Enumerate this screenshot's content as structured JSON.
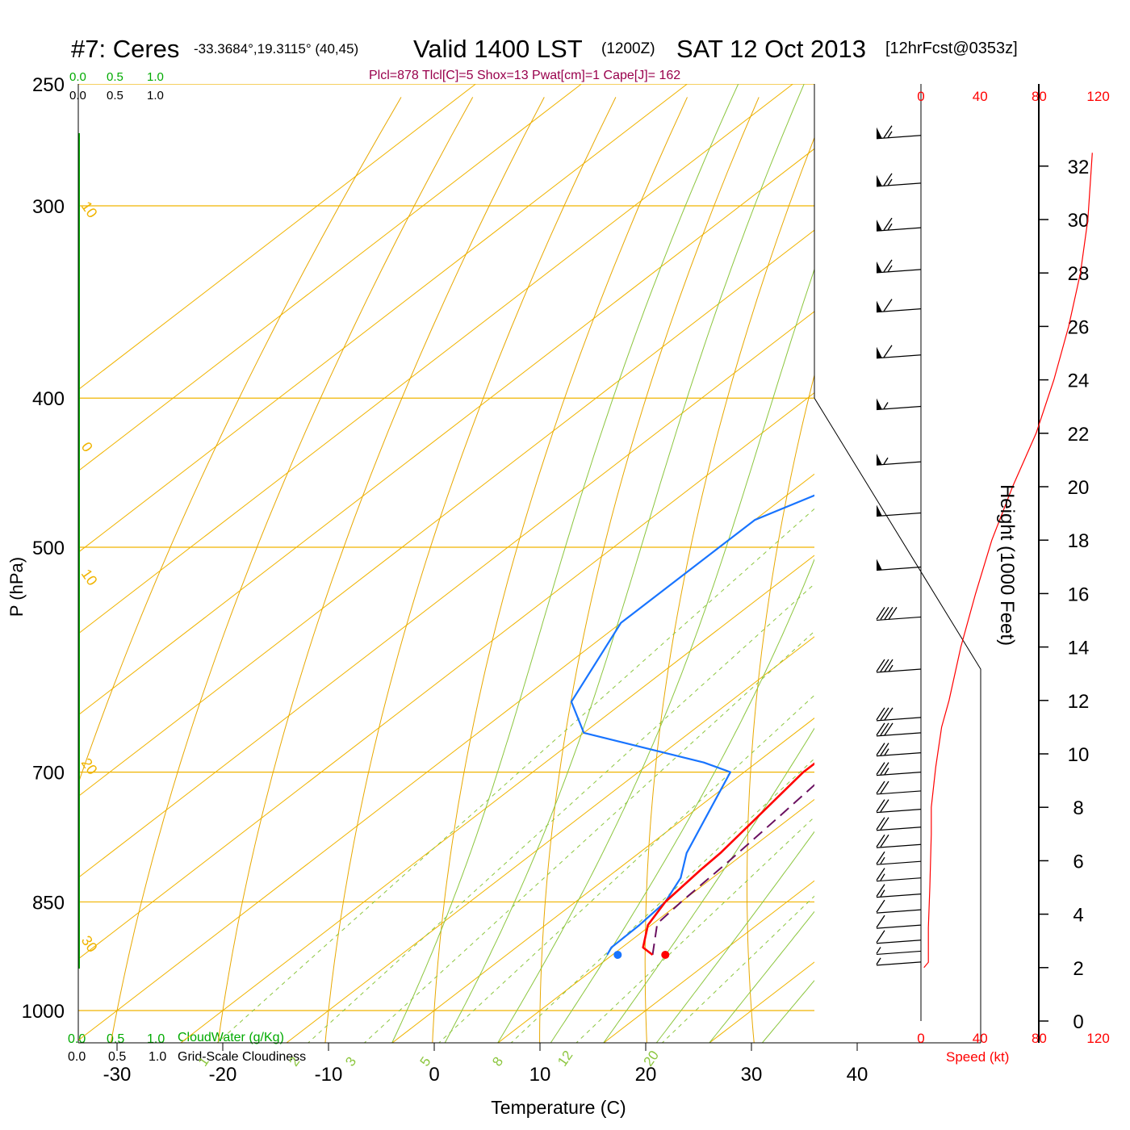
{
  "header": {
    "station": "#7: Ceres",
    "coords": "-33.3684°,19.3115° (40,45)",
    "valid": "Valid 1400 LST",
    "zulu": "(1200Z)",
    "date": "SAT 12 Oct 2013",
    "forecast": "[12hrFcst@0353z]",
    "params": "Plcl=878 Tlcl[C]=5 Shox=13 Pwat[cm]=1 Cape[J]= 162"
  },
  "labels": {
    "cloudwater_ticks": [
      "0.0",
      "0.5",
      "1.0"
    ],
    "cloudiness_ticks": [
      "0.0",
      "0.5",
      "1.0"
    ],
    "cloudwater": "CloudWater (g/Kg)",
    "cloudiness": "Grid-Scale Cloudiness",
    "speed_ticks": [
      "0",
      "40",
      "80",
      "120"
    ],
    "speed_label": "Speed (kt)",
    "height_label": "Height (1000 Feet)",
    "pressure_label": "P (hPa)",
    "temperature_label": "Temperature (C)"
  },
  "colors": {
    "isotherm": "#f0b400",
    "dry_adiabat": "#e8a800",
    "moist_adiabat": "#8cc63f",
    "mixing_ratio": "#8cc63f",
    "temperature": "#ff0000",
    "dewpoint": "#1874ff",
    "parcel": "#6a1060",
    "cloudwater": "#00aa00",
    "params": "#99004c",
    "speed": "#ff0000"
  },
  "chart_data": {
    "type": "line",
    "title": "Skew-T log-P sounding",
    "xlabel": "Temperature (C)",
    "ylabel": "P (hPa)",
    "x_ticks": [
      -30,
      -20,
      -10,
      0,
      10,
      20,
      30,
      40
    ],
    "p_ticks": [
      250,
      300,
      400,
      500,
      700,
      850,
      1000
    ],
    "height_ticks": [
      0,
      2,
      4,
      6,
      8,
      10,
      12,
      14,
      16,
      18,
      20,
      22,
      24,
      26,
      28,
      30,
      32
    ],
    "isotherm_labels": [
      {
        "t": 10,
        "p": 300,
        "label": "10"
      },
      {
        "t": 0,
        "p": 430,
        "label": "0"
      },
      {
        "t": -10,
        "p": 520,
        "label": "10"
      },
      {
        "t": -20,
        "p": 690,
        "label": "20"
      },
      {
        "t": -30,
        "p": 900,
        "label": "30"
      },
      {
        "t": 0,
        "p": 340,
        "label": "0"
      },
      {
        "t": 10,
        "p": 420,
        "label": "10"
      },
      {
        "t": 20,
        "p": 490,
        "label": "20"
      },
      {
        "t": 30,
        "p": 560,
        "label": "30"
      }
    ],
    "mixing_ratio_labels": [
      "1",
      "2",
      "3",
      "5",
      "8",
      "12",
      "20"
    ],
    "temperature": [
      {
        "p": 920,
        "t": 13.8
      },
      {
        "p": 910,
        "t": 12.0
      },
      {
        "p": 880,
        "t": 9.7
      },
      {
        "p": 850,
        "t": 8.5
      },
      {
        "p": 810,
        "t": 7.9
      },
      {
        "p": 790,
        "t": 7.7
      },
      {
        "p": 750,
        "t": 6.8
      },
      {
        "p": 700,
        "t": 5.6
      },
      {
        "p": 670,
        "t": 5.6
      },
      {
        "p": 650,
        "t": 6.0
      },
      {
        "p": 620,
        "t": 7.1
      },
      {
        "p": 550,
        "t": 9.5
      },
      {
        "p": 500,
        "t": 10.3
      },
      {
        "p": 450,
        "t": 10.7
      },
      {
        "p": 400,
        "t": 10.4
      },
      {
        "p": 350,
        "t": 8.5
      },
      {
        "p": 300,
        "t": 4.4
      },
      {
        "p": 270,
        "t": 2.9
      }
    ],
    "dewpoint": [
      {
        "p": 920,
        "t": 9.5
      },
      {
        "p": 910,
        "t": 9.0
      },
      {
        "p": 880,
        "t": 8.9
      },
      {
        "p": 850,
        "t": 8.5
      },
      {
        "p": 820,
        "t": 7.0
      },
      {
        "p": 790,
        "t": 4.5
      },
      {
        "p": 750,
        "t": 2.0
      },
      {
        "p": 700,
        "t": -1.3
      },
      {
        "p": 690,
        "t": -5.0
      },
      {
        "p": 660,
        "t": -20.0
      },
      {
        "p": 630,
        "t": -25.0
      },
      {
        "p": 560,
        "t": -30.0
      },
      {
        "p": 480,
        "t": -30.0
      },
      {
        "p": 400,
        "t": -17.0
      },
      {
        "p": 360,
        "t": -10.0
      },
      {
        "p": 330,
        "t": -7.0
      },
      {
        "p": 300,
        "t": -5.5
      },
      {
        "p": 270,
        "t": -4.2
      }
    ],
    "parcel": [
      {
        "p": 920,
        "t": 13.8
      },
      {
        "p": 878,
        "t": 10.4
      },
      {
        "p": 850,
        "t": 10.0
      },
      {
        "p": 800,
        "t": 9.5
      },
      {
        "p": 750,
        "t": 8.8
      },
      {
        "p": 700,
        "t": 8.0
      },
      {
        "p": 660,
        "t": 7.0
      }
    ],
    "surface_temperature": {
      "p": 920,
      "t": 15.0
    },
    "surface_dewpoint": {
      "p": 920,
      "t": 10.5
    },
    "wind_speed_kt": [
      {
        "h": 2.0,
        "s": 2
      },
      {
        "h": 2.2,
        "s": 5
      },
      {
        "h": 2.7,
        "s": 5
      },
      {
        "h": 3.5,
        "s": 5
      },
      {
        "h": 5.0,
        "s": 6
      },
      {
        "h": 7.0,
        "s": 7
      },
      {
        "h": 8.0,
        "s": 7
      },
      {
        "h": 9.5,
        "s": 10
      },
      {
        "h": 11.0,
        "s": 14
      },
      {
        "h": 12.0,
        "s": 19
      },
      {
        "h": 14.0,
        "s": 27
      },
      {
        "h": 16.0,
        "s": 37
      },
      {
        "h": 18.0,
        "s": 48
      },
      {
        "h": 20.0,
        "s": 62
      },
      {
        "h": 22.0,
        "s": 78
      },
      {
        "h": 24.0,
        "s": 90
      },
      {
        "h": 26.0,
        "s": 100
      },
      {
        "h": 28.0,
        "s": 108
      },
      {
        "h": 30.0,
        "s": 113
      },
      {
        "h": 32.5,
        "s": 116
      }
    ],
    "wind_barbs": [
      {
        "p": 270,
        "kt": 65
      },
      {
        "p": 290,
        "kt": 65
      },
      {
        "p": 310,
        "kt": 65
      },
      {
        "p": 330,
        "kt": 65
      },
      {
        "p": 350,
        "kt": 60
      },
      {
        "p": 375,
        "kt": 60
      },
      {
        "p": 405,
        "kt": 55
      },
      {
        "p": 440,
        "kt": 55
      },
      {
        "p": 475,
        "kt": 50
      },
      {
        "p": 515,
        "kt": 50
      },
      {
        "p": 555,
        "kt": 40
      },
      {
        "p": 600,
        "kt": 35
      },
      {
        "p": 645,
        "kt": 30
      },
      {
        "p": 660,
        "kt": 30
      },
      {
        "p": 680,
        "kt": 25
      },
      {
        "p": 700,
        "kt": 25
      },
      {
        "p": 720,
        "kt": 20
      },
      {
        "p": 740,
        "kt": 20
      },
      {
        "p": 760,
        "kt": 20
      },
      {
        "p": 780,
        "kt": 20
      },
      {
        "p": 800,
        "kt": 15
      },
      {
        "p": 820,
        "kt": 15
      },
      {
        "p": 840,
        "kt": 15
      },
      {
        "p": 860,
        "kt": 10
      },
      {
        "p": 880,
        "kt": 10
      },
      {
        "p": 900,
        "kt": 10
      },
      {
        "p": 915,
        "kt": 5
      },
      {
        "p": 930,
        "kt": 5
      }
    ]
  }
}
